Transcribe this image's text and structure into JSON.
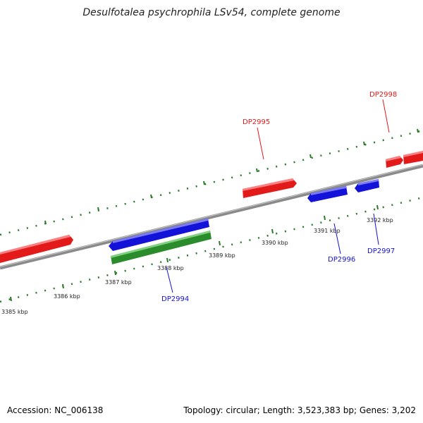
{
  "title": "Desulfotalea psychrophila LSv54, complete genome",
  "footer": {
    "accession_label": "Accession: NC_006138",
    "summary": "Topology: circular; Length: 3,523,383 bp; Genes: 3,202"
  },
  "colors": {
    "forward_strand": "#e31a1a",
    "reverse_strand": "#1212d8",
    "rna_feature": "#2a8c2a",
    "tick_marks": "#2a7a2a",
    "backbone": "#8a8a8a"
  },
  "scale_labels": [
    "3385 kbp",
    "3386 kbp",
    "3387 kbp",
    "3388 kbp",
    "3389 kbp",
    "3390 kbp",
    "3391 kbp",
    "3392 kbp"
  ],
  "gene_labels": [
    {
      "name": "DP2994",
      "strand": "reverse"
    },
    {
      "name": "DP2995",
      "strand": "forward"
    },
    {
      "name": "DP2996",
      "strand": "reverse"
    },
    {
      "name": "DP2997",
      "strand": "reverse"
    },
    {
      "name": "DP2998",
      "strand": "forward"
    }
  ]
}
